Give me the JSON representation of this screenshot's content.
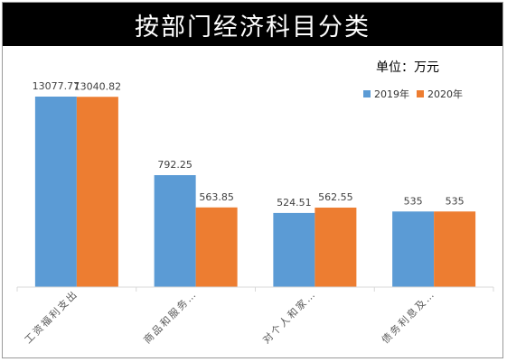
{
  "chart_data": {
    "type": "bar",
    "title": "按部门经济科目分类",
    "unit": "单位：万元",
    "categories": [
      "工资福利支出",
      "商品和服务…",
      "对个人和家…",
      "债务利息及…"
    ],
    "series": [
      {
        "name": "2019年",
        "color": "#5B9BD5",
        "values": [
          13077.77,
          792.25,
          524.51,
          535
        ],
        "labels": [
          "13077.77",
          "792.25",
          "524.51",
          "535"
        ]
      },
      {
        "name": "2020年",
        "color": "#ED7D31",
        "values": [
          13040.82,
          563.85,
          562.55,
          535
        ],
        "labels": [
          "13040.82",
          "563.85",
          "562.55",
          "535"
        ]
      }
    ],
    "legend_position": "top-right",
    "grid": false
  }
}
